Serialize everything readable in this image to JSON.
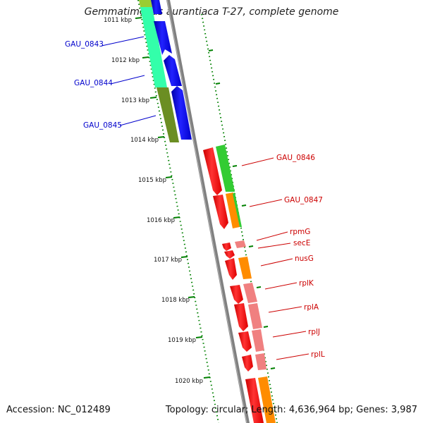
{
  "title": "Gemmatimonas aurantiaca T-27, complete genome",
  "footer": {
    "accession": "Accession: NC_012489",
    "summary": "Topology: circular; Length: 4,636,964 bp; Genes: 3,987"
  },
  "ticks": [
    "1011 kbp",
    "1012 kbp",
    "1013 kbp",
    "1014 kbp",
    "1015 kbp",
    "1016 kbp",
    "1017 kbp",
    "1018 kbp",
    "1019 kbp",
    "1020 kbp"
  ],
  "gene_labels": [
    {
      "text": "GAU_0843",
      "color": "#0000cc"
    },
    {
      "text": "GAU_0844",
      "color": "#0000cc"
    },
    {
      "text": "GAU_0845",
      "color": "#0000cc"
    },
    {
      "text": "GAU_0846",
      "color": "#cc0000"
    },
    {
      "text": "GAU_0847",
      "color": "#cc0000"
    },
    {
      "text": "rpmG",
      "color": "#cc0000"
    },
    {
      "text": "secE",
      "color": "#cc0000"
    },
    {
      "text": "nusG",
      "color": "#cc0000"
    },
    {
      "text": "rplK",
      "color": "#cc0000"
    },
    {
      "text": "rplA",
      "color": "#cc0000"
    },
    {
      "text": "rplJ",
      "color": "#cc0000"
    },
    {
      "text": "rplL",
      "color": "#cc0000"
    }
  ],
  "colors": {
    "reverse_strand": "#0000ee",
    "forward_strand": "#ff0000",
    "backbone": "#808080",
    "gc_skew_dots": "#008000",
    "cog_green": "#33cc33",
    "cog_olive": "#6b8e23",
    "cog_aqua": "#33ffaa",
    "cog_orange": "#ff8c00",
    "cog_pink": "#f08080"
  }
}
